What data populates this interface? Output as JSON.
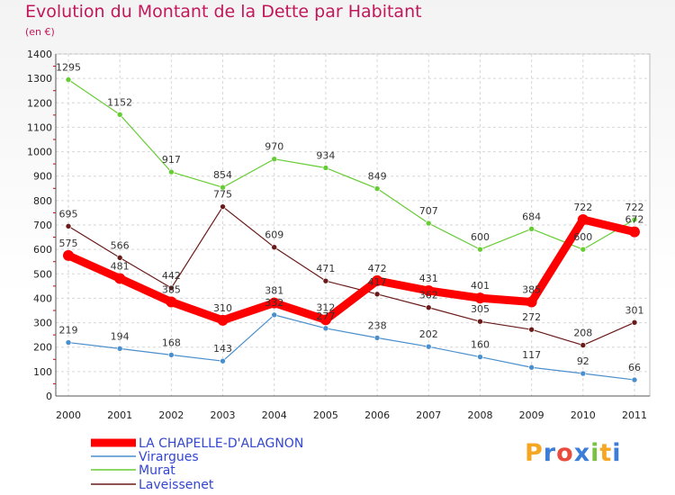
{
  "chart_data": {
    "type": "line",
    "title": "Evolution du Montant de la Dette par Habitant",
    "subtitle": "(en €)",
    "x": [
      "2000",
      "2001",
      "2002",
      "2003",
      "2004",
      "2005",
      "2006",
      "2007",
      "2008",
      "2009",
      "2010",
      "2011"
    ],
    "yticks": [
      0,
      100,
      200,
      300,
      400,
      500,
      600,
      700,
      800,
      900,
      1000,
      1100,
      1200,
      1300,
      1400
    ],
    "ylim": [
      0,
      1400
    ],
    "grid": true,
    "legend_position": "bottom-left",
    "series": [
      {
        "name": "LA CHAPELLE-D'ALAGNON",
        "color": "#ff0000",
        "values": [
          575,
          481,
          385,
          310,
          381,
          312,
          472,
          431,
          401,
          385,
          722,
          672
        ],
        "labels": [
          "575",
          "481",
          "385",
          "310",
          "381",
          "312",
          "472",
          "431",
          "401",
          "385",
          "722",
          "672"
        ]
      },
      {
        "name": "Virargues",
        "color": "#4a8fcc",
        "values": [
          219,
          194,
          168,
          143,
          332,
          277,
          238,
          202,
          160,
          117,
          92,
          66
        ],
        "labels": [
          "219",
          "194",
          "168",
          "143",
          "332",
          "277",
          "238",
          "202",
          "160",
          "117",
          "92",
          "66"
        ]
      },
      {
        "name": "Murat",
        "color": "#66cc33",
        "values": [
          1295,
          1152,
          917,
          854,
          970,
          934,
          849,
          707,
          600,
          684,
          600,
          722
        ],
        "labels": [
          "1295",
          "1152",
          "917",
          "854",
          "970",
          "934",
          "849",
          "707",
          "600",
          "684",
          "600",
          "722"
        ]
      },
      {
        "name": "Laveissenet",
        "color": "#6b1a1a",
        "values": [
          695,
          566,
          442,
          775,
          609,
          471,
          417,
          362,
          305,
          272,
          208,
          301
        ],
        "labels": [
          "695",
          "566",
          "442",
          "775",
          "609",
          "471",
          "417",
          "362",
          "305",
          "272",
          "208",
          "301"
        ]
      }
    ]
  },
  "logo": {
    "text": "Proxiti",
    "letters": [
      "P",
      "r",
      "o",
      "x",
      "i",
      "t",
      "i"
    ],
    "colors": [
      "#f5a623",
      "#3b7dd8",
      "#e94b3c",
      "#3b7dd8",
      "#7ac143",
      "#f5a623",
      "#3b7dd8"
    ]
  }
}
